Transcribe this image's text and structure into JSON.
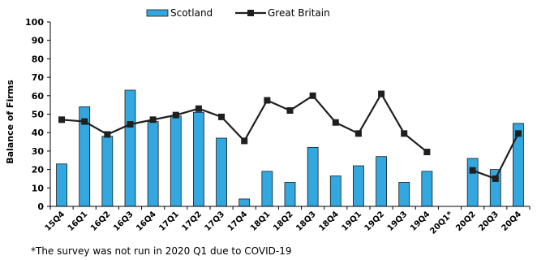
{
  "chart_data": {
    "type": "bar",
    "ylabel": "Balance of Firms",
    "ylim": [
      0,
      100
    ],
    "yticks": [
      0,
      10,
      20,
      30,
      40,
      50,
      60,
      70,
      80,
      90,
      100
    ],
    "categories": [
      "15Q4",
      "16Q1",
      "16Q2",
      "16Q3",
      "16Q4",
      "17Q1",
      "17Q2",
      "17Q3",
      "17Q4",
      "18Q1",
      "18Q2",
      "18Q3",
      "18Q4",
      "19Q1",
      "19Q2",
      "19Q3",
      "19Q4",
      "20Q1*",
      "20Q2",
      "20Q3",
      "20Q4"
    ],
    "legend_position": "top",
    "series": [
      {
        "name": "Scotland",
        "type": "bar",
        "color": "#33a8e0",
        "values": [
          23,
          54,
          38,
          63,
          46,
          49,
          51,
          37,
          4,
          19,
          13,
          32,
          16.5,
          22,
          27,
          13,
          19,
          null,
          26,
          20,
          45
        ]
      },
      {
        "name": "Great Britain",
        "type": "line",
        "color": "#1f1f1f",
        "values": [
          47,
          46,
          39,
          44.5,
          47,
          49.5,
          53,
          48.5,
          35.5,
          57.5,
          52,
          60,
          45.5,
          39.5,
          61,
          39.5,
          29.5,
          null,
          19.5,
          15,
          39.5
        ]
      }
    ]
  },
  "footnote": "*The survey was not run in 2020 Q1 due to COVID-19"
}
